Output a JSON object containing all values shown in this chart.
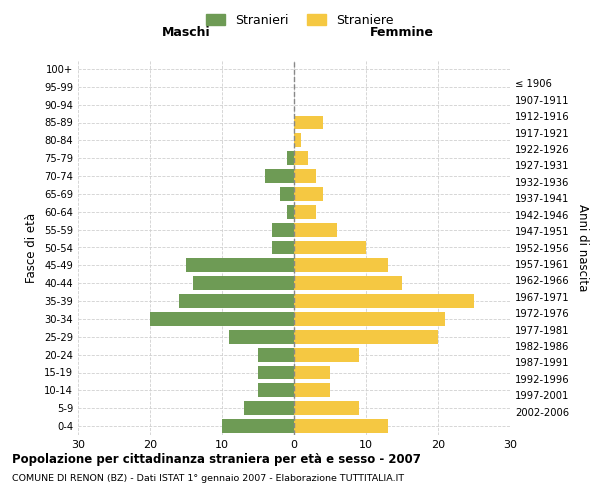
{
  "age_groups": [
    "0-4",
    "5-9",
    "10-14",
    "15-19",
    "20-24",
    "25-29",
    "30-34",
    "35-39",
    "40-44",
    "45-49",
    "50-54",
    "55-59",
    "60-64",
    "65-69",
    "70-74",
    "75-79",
    "80-84",
    "85-89",
    "90-94",
    "95-99",
    "100+"
  ],
  "birth_years": [
    "2002-2006",
    "1997-2001",
    "1992-1996",
    "1987-1991",
    "1982-1986",
    "1977-1981",
    "1972-1976",
    "1967-1971",
    "1962-1966",
    "1957-1961",
    "1952-1956",
    "1947-1951",
    "1942-1946",
    "1937-1941",
    "1932-1936",
    "1927-1931",
    "1922-1926",
    "1917-1921",
    "1912-1916",
    "1907-1911",
    "≤ 1906"
  ],
  "maschi": [
    10,
    7,
    5,
    5,
    5,
    9,
    20,
    16,
    14,
    15,
    3,
    3,
    1,
    2,
    4,
    1,
    0,
    0,
    0,
    0,
    0
  ],
  "femmine": [
    13,
    9,
    5,
    5,
    9,
    20,
    21,
    25,
    15,
    13,
    10,
    6,
    3,
    4,
    3,
    2,
    1,
    4,
    0,
    0,
    0
  ],
  "color_maschi": "#6e9b55",
  "color_femmine": "#f5c842",
  "title_main": "Popolazione per cittadinanza straniera per età e sesso - 2007",
  "title_sub": "COMUNE DI RENON (BZ) - Dati ISTAT 1° gennaio 2007 - Elaborazione TUTTITALIA.IT",
  "xlabel_left": "Maschi",
  "xlabel_right": "Femmine",
  "ylabel_left": "Fasce di età",
  "ylabel_right": "Anni di nascita",
  "legend_maschi": "Stranieri",
  "legend_femmine": "Straniere",
  "xlim": 30,
  "background_color": "#ffffff",
  "grid_color": "#d0d0d0"
}
